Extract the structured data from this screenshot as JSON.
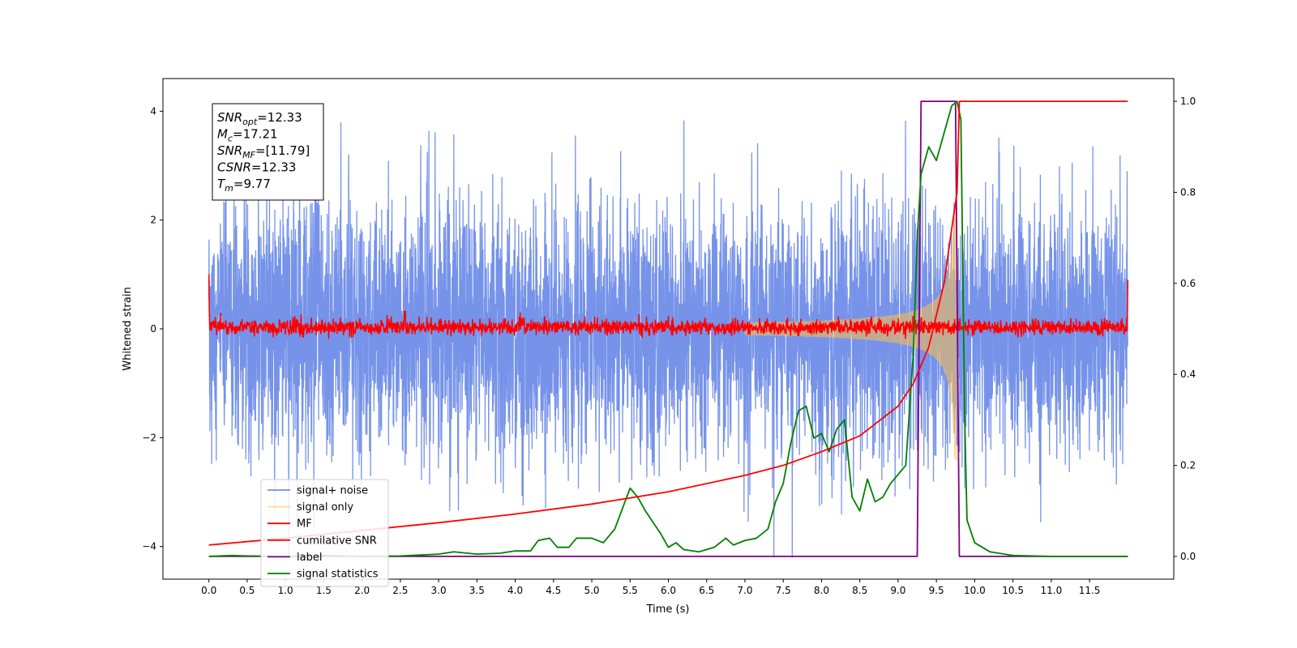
{
  "chart_data": {
    "type": "line",
    "xlabel": "Time (s)",
    "ylabel": "Whitened strain",
    "xlim": [
      -0.6,
      12.6
    ],
    "ylim": [
      -4.6,
      4.6
    ],
    "y2lim": [
      -0.05,
      1.05
    ],
    "x_ticks": [
      "0.0",
      "0.5",
      "1.0",
      "1.5",
      "2.0",
      "2.5",
      "3.0",
      "3.5",
      "4.0",
      "4.5",
      "5.0",
      "5.5",
      "6.0",
      "6.5",
      "7.0",
      "7.5",
      "8.0",
      "8.5",
      "9.0",
      "9.5",
      "10.0",
      "10.5",
      "11.0",
      "11.5"
    ],
    "y_ticks": [
      "4",
      "2",
      "0",
      "−2",
      "−4"
    ],
    "y2_ticks": [
      "1.0",
      "0.8",
      "0.6",
      "0.4",
      "0.2",
      "0.0"
    ],
    "grid": false,
    "legend_position": "lower-left",
    "stats_box": [
      {
        "sym": "SNR",
        "sub": "opt",
        "val": "=12.33"
      },
      {
        "sym": "M",
        "sub": "c",
        "val": "=17.21"
      },
      {
        "sym": "SNR",
        "sub": "MF",
        "val": "=[11.79]"
      },
      {
        "sym": "CSNR",
        "sub": "",
        "val": "=12.33"
      },
      {
        "sym": "T",
        "sub": "m",
        "val": "=9.77"
      }
    ],
    "series": [
      {
        "name": "signal+ noise",
        "color": "#4169e1",
        "axis": "left",
        "description_values": {
          "t_start": 0.0,
          "t_end": 12.0,
          "noise_std": 1.0,
          "envelope_max": 4.2
        }
      },
      {
        "name": "signal only",
        "color": "#ffc04d",
        "axis": "left",
        "chirp": {
          "t_start": 7.0,
          "t_merge": 9.77,
          "peak_amplitude": 2.4
        }
      },
      {
        "name": "MF",
        "color": "#ff0000",
        "axis": "left",
        "description_values": {
          "noise_std": 0.07,
          "edge_value_start": 1.0,
          "edge_value_end": 0.9
        }
      },
      {
        "name": "cumilative SNR",
        "color": "#ff0000",
        "axis": "right",
        "points": [
          [
            0.0,
            0.025
          ],
          [
            1.0,
            0.04
          ],
          [
            2.0,
            0.057
          ],
          [
            3.0,
            0.074
          ],
          [
            4.0,
            0.093
          ],
          [
            5.0,
            0.115
          ],
          [
            6.0,
            0.142
          ],
          [
            7.0,
            0.178
          ],
          [
            7.5,
            0.2
          ],
          [
            8.0,
            0.23
          ],
          [
            8.5,
            0.265
          ],
          [
            9.0,
            0.33
          ],
          [
            9.2,
            0.38
          ],
          [
            9.4,
            0.46
          ],
          [
            9.6,
            0.6
          ],
          [
            9.7,
            0.72
          ],
          [
            9.77,
            0.8
          ],
          [
            9.8,
            1.0
          ],
          [
            12.0,
            1.0
          ]
        ]
      },
      {
        "name": "label",
        "color": "#800080",
        "axis": "right",
        "points": [
          [
            0.0,
            0.0
          ],
          [
            9.25,
            0.0
          ],
          [
            9.3,
            1.0
          ],
          [
            9.75,
            1.0
          ],
          [
            9.8,
            0.0
          ],
          [
            12.0,
            0.0
          ]
        ]
      },
      {
        "name": "signal statistics",
        "color": "#008000",
        "axis": "right",
        "points": [
          [
            0.0,
            0.0
          ],
          [
            0.3,
            0.002
          ],
          [
            0.5,
            0.001
          ],
          [
            1.0,
            0.0
          ],
          [
            1.5,
            0.002
          ],
          [
            2.0,
            0.0
          ],
          [
            2.5,
            0.001
          ],
          [
            3.0,
            0.005
          ],
          [
            3.2,
            0.01
          ],
          [
            3.5,
            0.005
          ],
          [
            3.8,
            0.007
          ],
          [
            4.0,
            0.012
          ],
          [
            4.2,
            0.012
          ],
          [
            4.3,
            0.035
          ],
          [
            4.45,
            0.04
          ],
          [
            4.55,
            0.02
          ],
          [
            4.7,
            0.02
          ],
          [
            4.8,
            0.04
          ],
          [
            5.0,
            0.04
          ],
          [
            5.15,
            0.03
          ],
          [
            5.3,
            0.06
          ],
          [
            5.5,
            0.15
          ],
          [
            5.6,
            0.13
          ],
          [
            5.7,
            0.1
          ],
          [
            5.9,
            0.05
          ],
          [
            6.0,
            0.02
          ],
          [
            6.1,
            0.03
          ],
          [
            6.2,
            0.015
          ],
          [
            6.4,
            0.01
          ],
          [
            6.6,
            0.02
          ],
          [
            6.75,
            0.04
          ],
          [
            6.85,
            0.025
          ],
          [
            7.0,
            0.035
          ],
          [
            7.15,
            0.04
          ],
          [
            7.3,
            0.06
          ],
          [
            7.4,
            0.12
          ],
          [
            7.5,
            0.16
          ],
          [
            7.6,
            0.25
          ],
          [
            7.7,
            0.32
          ],
          [
            7.8,
            0.33
          ],
          [
            7.9,
            0.26
          ],
          [
            8.0,
            0.27
          ],
          [
            8.1,
            0.23
          ],
          [
            8.2,
            0.28
          ],
          [
            8.3,
            0.3
          ],
          [
            8.4,
            0.13
          ],
          [
            8.5,
            0.1
          ],
          [
            8.6,
            0.17
          ],
          [
            8.7,
            0.12
          ],
          [
            8.8,
            0.13
          ],
          [
            8.9,
            0.16
          ],
          [
            9.0,
            0.18
          ],
          [
            9.1,
            0.2
          ],
          [
            9.2,
            0.45
          ],
          [
            9.25,
            0.7
          ],
          [
            9.3,
            0.84
          ],
          [
            9.4,
            0.9
          ],
          [
            9.5,
            0.87
          ],
          [
            9.6,
            0.93
          ],
          [
            9.7,
            0.99
          ],
          [
            9.77,
            1.0
          ],
          [
            9.82,
            0.96
          ],
          [
            9.87,
            0.3
          ],
          [
            9.9,
            0.08
          ],
          [
            10.0,
            0.03
          ],
          [
            10.2,
            0.01
          ],
          [
            10.5,
            0.002
          ],
          [
            11.0,
            0.0
          ],
          [
            12.0,
            0.0
          ]
        ]
      }
    ]
  }
}
